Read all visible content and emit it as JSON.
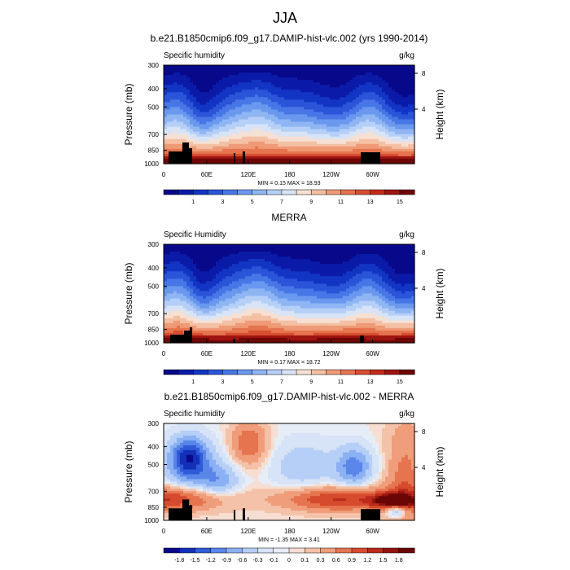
{
  "figure_title": "JJA",
  "chart_data": [
    {
      "type": "heatmap",
      "title": "b.e21.B1850cmip6.f09_g17.DAMIP-hist-vlc.002 (yrs 1990-2014)",
      "left_label": "Specific humidity",
      "right_label": "g/kg",
      "ylabel": "Pressure (mb)",
      "ylabel_right": "Height (km)",
      "y_ticks": [
        "300",
        "400",
        "500",
        "700",
        "850",
        "1000"
      ],
      "y_right_ticks": [
        "8",
        "4"
      ],
      "x_ticks": [
        "0",
        "60E",
        "120E",
        "180",
        "120W",
        "60W"
      ],
      "stats": "MIN =   0.15  MAX =  18.93",
      "colorbar_labels": [
        "1",
        "3",
        "5",
        "7",
        "9",
        "11",
        "13",
        "15"
      ],
      "colorbar_levels": [
        0,
        1,
        2,
        3,
        4,
        5,
        6,
        7,
        8,
        9,
        10,
        11,
        12,
        13,
        14,
        15,
        16
      ]
    },
    {
      "type": "heatmap",
      "title": "MERRA",
      "left_label": "Specific Humidity",
      "right_label": "g/kg",
      "ylabel": "Pressure (mb)",
      "ylabel_right": "Height (km)",
      "y_ticks": [
        "300",
        "400",
        "500",
        "700",
        "850",
        "1000"
      ],
      "y_right_ticks": [
        "8",
        "4"
      ],
      "x_ticks": [
        "0",
        "60E",
        "120E",
        "180",
        "120W",
        "60W"
      ],
      "stats": "MIN =   0.17  MAX =  18.72",
      "colorbar_labels": [
        "1",
        "3",
        "5",
        "7",
        "9",
        "11",
        "13",
        "15"
      ],
      "colorbar_levels": [
        0,
        1,
        2,
        3,
        4,
        5,
        6,
        7,
        8,
        9,
        10,
        11,
        12,
        13,
        14,
        15,
        16
      ]
    },
    {
      "type": "heatmap",
      "title": "b.e21.B1850cmip6.f09_g17.DAMIP-hist-vlc.002 - MERRA",
      "left_label": "Specific humidity",
      "right_label": "g/kg",
      "ylabel": "Pressure (mb)",
      "ylabel_right": "Height (km)",
      "y_ticks": [
        "300",
        "400",
        "500",
        "700",
        "850",
        "1000"
      ],
      "y_right_ticks": [
        "8",
        "4"
      ],
      "x_ticks": [
        "0",
        "60E",
        "120E",
        "180",
        "120W",
        "60W"
      ],
      "stats": "MIN =  -1.35  MAX =   3.41",
      "colorbar_labels": [
        "-1.8",
        "-1.5",
        "-1.2",
        "-0.9",
        "-0.6",
        "-0.3",
        "-0.1",
        "0",
        "0.1",
        "0.3",
        "0.6",
        "0.9",
        "1.2",
        "1.5",
        "1.8"
      ],
      "colorbar_levels": [
        -2.1,
        -1.8,
        -1.5,
        -1.2,
        -0.9,
        -0.6,
        -0.3,
        -0.1,
        0,
        0.1,
        0.3,
        0.6,
        0.9,
        1.2,
        1.5,
        1.8,
        2.1
      ]
    }
  ],
  "colors": {
    "seq": [
      "#08088a",
      "#0b1ba8",
      "#1335c4",
      "#2a55d8",
      "#4777e6",
      "#6a98ee",
      "#8fb5f3",
      "#b5cff7",
      "#d8e4f6",
      "#f6e0d4",
      "#f4c0a4",
      "#ef9a76",
      "#e6744e",
      "#d84e30",
      "#c22a1a",
      "#9e1410",
      "#6e0606"
    ],
    "div": [
      "#08088a",
      "#1430b8",
      "#2f5bd8",
      "#5a86ea",
      "#8bb0f3",
      "#b6cff7",
      "#d7e3f6",
      "#e6edf7",
      "#f6ded2",
      "#f4c2a8",
      "#ef9d7a",
      "#e6744f",
      "#d64a2e",
      "#bb2a1a",
      "#941410",
      "#6a0606"
    ],
    "terrain": "#000000"
  }
}
